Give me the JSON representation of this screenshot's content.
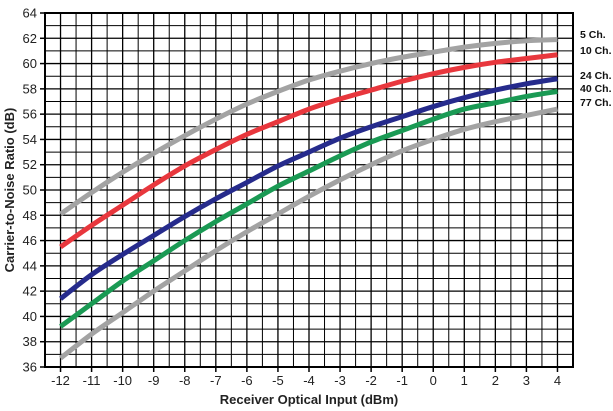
{
  "chart_data": {
    "type": "line",
    "xlabel": "Receiver Optical Input (dBm)",
    "ylabel": "Carrier-to-Noise Ratio (dB)",
    "xlim": [
      -12.5,
      4.5
    ],
    "ylim": [
      36,
      64
    ],
    "xticks": [
      -12,
      -11,
      -10,
      -9,
      -8,
      -7,
      -6,
      -5,
      -4,
      -3,
      -2,
      -1,
      0,
      1,
      2,
      3,
      4
    ],
    "yticks": [
      36,
      38,
      40,
      42,
      44,
      46,
      48,
      50,
      52,
      54,
      56,
      58,
      60,
      62,
      64
    ],
    "x_minor_step": 0.5,
    "y_minor_step": 1,
    "grid": true,
    "legend_placement": "right (labels at line ends)",
    "x": [
      -12,
      -11,
      -10,
      -9,
      -8,
      -7,
      -6,
      -5,
      -4,
      -3,
      -2,
      -1,
      0,
      1,
      2,
      3,
      4
    ],
    "series": [
      {
        "name": "5 Ch.",
        "color": "#a3a3a3",
        "values": [
          48.1,
          49.8,
          51.4,
          52.9,
          54.3,
          55.6,
          56.8,
          57.8,
          58.7,
          59.4,
          60.0,
          60.5,
          60.9,
          61.3,
          61.6,
          61.8,
          61.9
        ]
      },
      {
        "name": "10 Ch.",
        "color": "#e8373d",
        "values": [
          45.5,
          47.2,
          48.8,
          50.4,
          51.9,
          53.2,
          54.4,
          55.4,
          56.4,
          57.2,
          57.9,
          58.6,
          59.2,
          59.7,
          60.1,
          60.4,
          60.7
        ]
      },
      {
        "name": "24 Ch.",
        "color": "#262b8c",
        "values": [
          41.4,
          43.3,
          44.9,
          46.4,
          47.9,
          49.3,
          50.6,
          51.9,
          53.0,
          54.1,
          55.0,
          55.8,
          56.6,
          57.3,
          57.9,
          58.4,
          58.8
        ]
      },
      {
        "name": "40 Ch.",
        "color": "#1a9a54",
        "values": [
          39.2,
          41.0,
          42.8,
          44.4,
          46.0,
          47.5,
          48.9,
          50.3,
          51.5,
          52.7,
          53.8,
          54.7,
          55.6,
          56.4,
          56.9,
          57.4,
          57.8
        ]
      },
      {
        "name": "77 Ch.",
        "color": "#a3a3a3",
        "values": [
          36.7,
          38.6,
          40.3,
          42.0,
          43.6,
          45.2,
          46.7,
          48.1,
          49.5,
          50.8,
          52.0,
          53.1,
          54.0,
          54.8,
          55.4,
          55.9,
          56.4
        ]
      }
    ]
  }
}
